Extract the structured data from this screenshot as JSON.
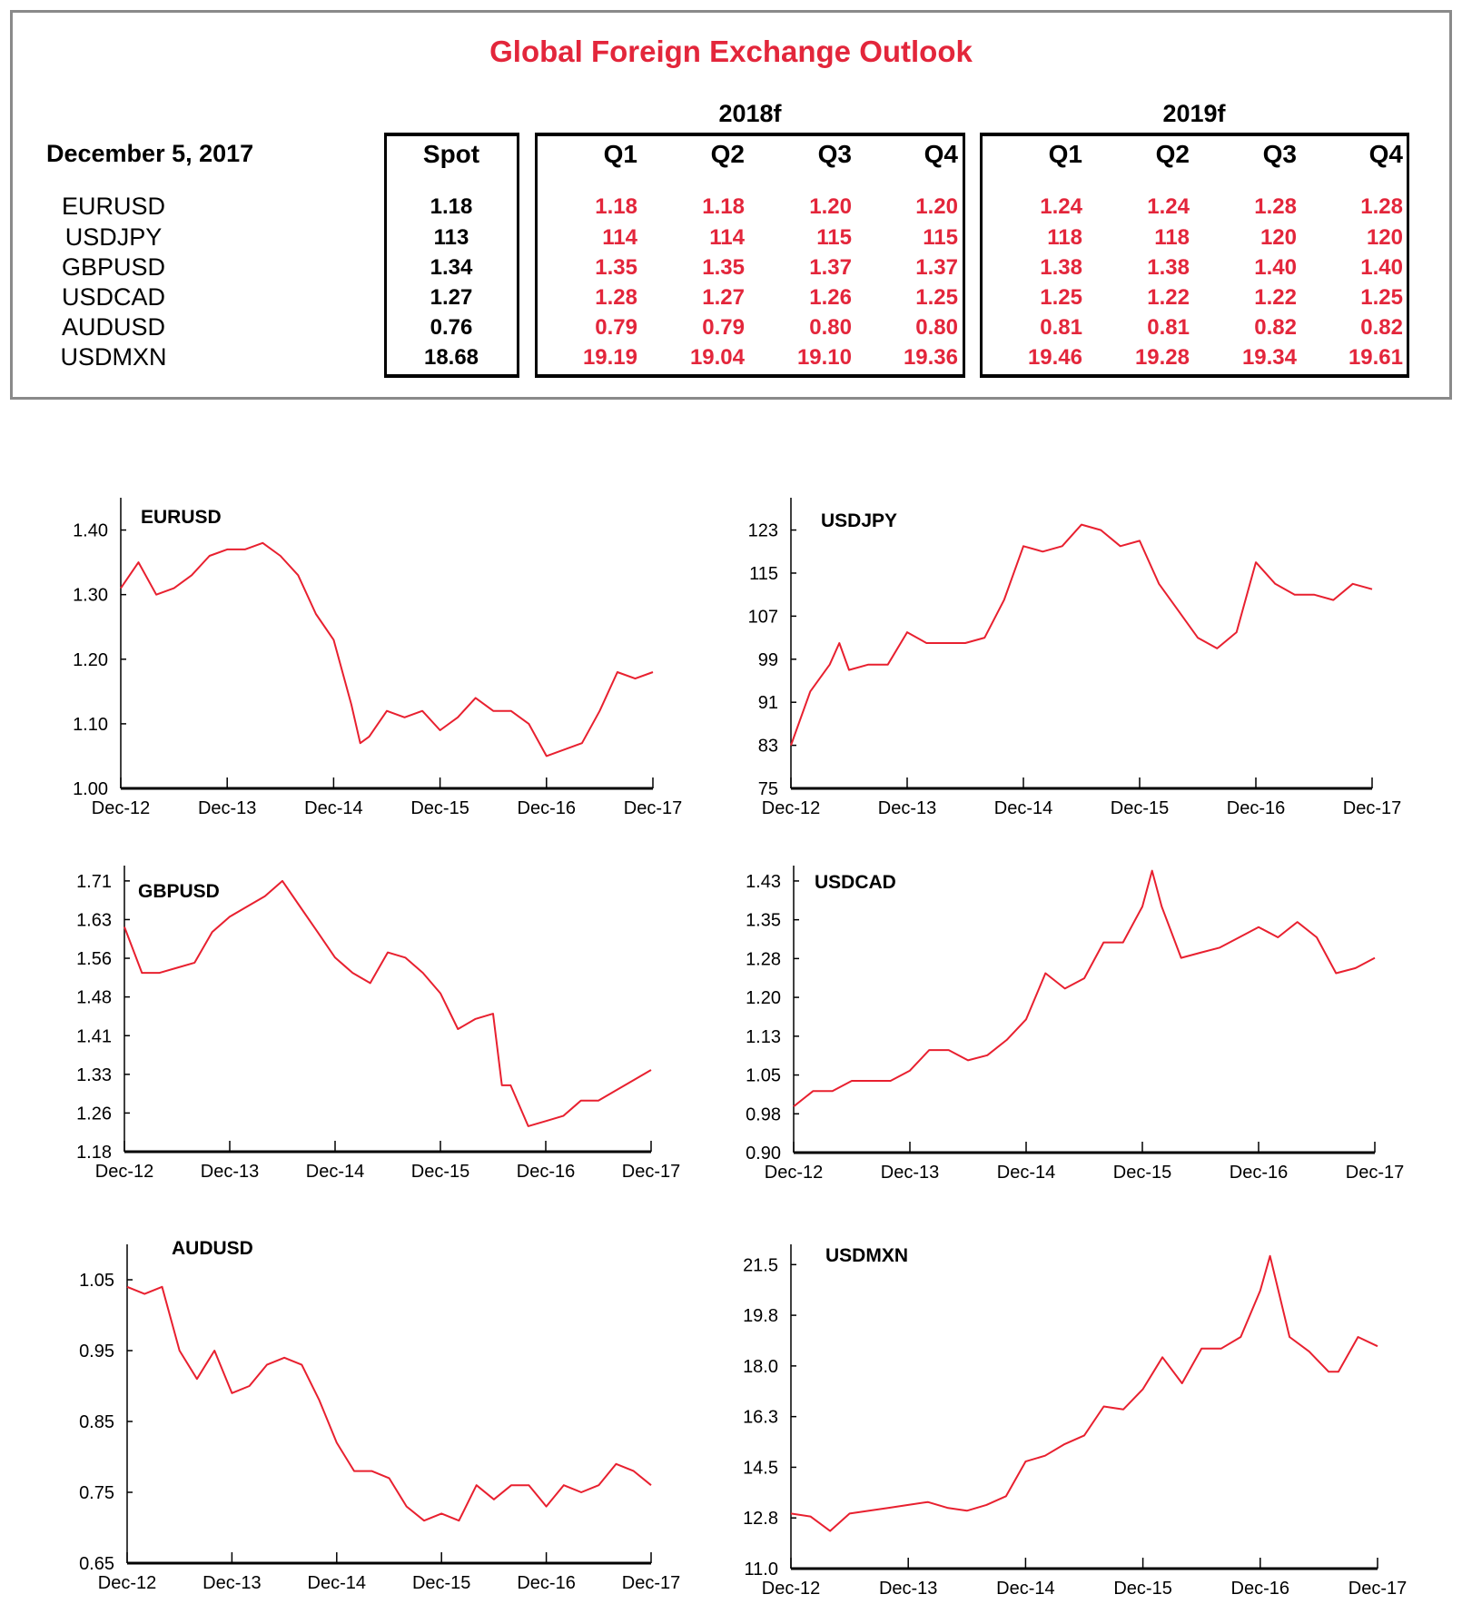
{
  "title": "Global Foreign Exchange Outlook",
  "date": "December 5, 2017",
  "table": {
    "spot_header": "Spot",
    "year_groups": [
      {
        "label": "2018f",
        "quarters": [
          "Q1",
          "Q2",
          "Q3",
          "Q4"
        ]
      },
      {
        "label": "2019f",
        "quarters": [
          "Q1",
          "Q2",
          "Q3",
          "Q4"
        ]
      }
    ],
    "rows": [
      {
        "pair": "EURUSD",
        "spot": "1.18",
        "f2018": [
          "1.18",
          "1.18",
          "1.20",
          "1.20"
        ],
        "f2019": [
          "1.24",
          "1.24",
          "1.28",
          "1.28"
        ]
      },
      {
        "pair": "USDJPY",
        "spot": "113",
        "f2018": [
          "114",
          "114",
          "115",
          "115"
        ],
        "f2019": [
          "118",
          "118",
          "120",
          "120"
        ]
      },
      {
        "pair": "GBPUSD",
        "spot": "1.34",
        "f2018": [
          "1.35",
          "1.35",
          "1.37",
          "1.37"
        ],
        "f2019": [
          "1.38",
          "1.38",
          "1.40",
          "1.40"
        ]
      },
      {
        "pair": "USDCAD",
        "spot": "1.27",
        "f2018": [
          "1.28",
          "1.27",
          "1.26",
          "1.25"
        ],
        "f2019": [
          "1.25",
          "1.22",
          "1.22",
          "1.25"
        ]
      },
      {
        "pair": "AUDUSD",
        "spot": "0.76",
        "f2018": [
          "0.79",
          "0.79",
          "0.80",
          "0.80"
        ],
        "f2019": [
          "0.81",
          "0.81",
          "0.82",
          "0.82"
        ]
      },
      {
        "pair": "USDMXN",
        "spot": "18.68",
        "f2018": [
          "19.19",
          "19.04",
          "19.10",
          "19.36"
        ],
        "f2019": [
          "19.46",
          "19.28",
          "19.34",
          "19.61"
        ]
      }
    ]
  },
  "colors": {
    "accent": "#e3263b",
    "line": "#e8202f",
    "box_border": "#8a8a8a"
  },
  "chart_data": [
    {
      "type": "line",
      "title": "EURUSD",
      "ylim": [
        1.0,
        1.45
      ],
      "yticks": [
        "1.00",
        "1.10",
        "1.20",
        "1.30",
        "1.40"
      ],
      "ytick_values": [
        1.0,
        1.1,
        1.2,
        1.3,
        1.4
      ],
      "xticks": [
        "Dec-12",
        "Dec-13",
        "Dec-14",
        "Dec-15",
        "Dec-16",
        "Dec-17"
      ],
      "grid": false,
      "points": [
        [
          "2012-12",
          1.31
        ],
        [
          "2013-02",
          1.35
        ],
        [
          "2013-04",
          1.3
        ],
        [
          "2013-06",
          1.31
        ],
        [
          "2013-08",
          1.33
        ],
        [
          "2013-10",
          1.36
        ],
        [
          "2013-12",
          1.37
        ],
        [
          "2014-02",
          1.37
        ],
        [
          "2014-04",
          1.38
        ],
        [
          "2014-06",
          1.36
        ],
        [
          "2014-08",
          1.33
        ],
        [
          "2014-10",
          1.27
        ],
        [
          "2014-12",
          1.23
        ],
        [
          "2015-02",
          1.13
        ],
        [
          "2015-03",
          1.07
        ],
        [
          "2015-04",
          1.08
        ],
        [
          "2015-06",
          1.12
        ],
        [
          "2015-08",
          1.11
        ],
        [
          "2015-10",
          1.12
        ],
        [
          "2015-12",
          1.09
        ],
        [
          "2016-02",
          1.11
        ],
        [
          "2016-04",
          1.14
        ],
        [
          "2016-06",
          1.12
        ],
        [
          "2016-08",
          1.12
        ],
        [
          "2016-10",
          1.1
        ],
        [
          "2016-12",
          1.05
        ],
        [
          "2017-02",
          1.06
        ],
        [
          "2017-04",
          1.07
        ],
        [
          "2017-06",
          1.12
        ],
        [
          "2017-08",
          1.18
        ],
        [
          "2017-10",
          1.17
        ],
        [
          "2017-12",
          1.18
        ]
      ]
    },
    {
      "type": "line",
      "title": "USDJPY",
      "ylim": [
        75,
        129
      ],
      "yticks": [
        "75",
        "83",
        "91",
        "99",
        "107",
        "115",
        "123"
      ],
      "ytick_values": [
        75,
        83,
        91,
        99,
        107,
        115,
        123
      ],
      "xticks": [
        "Dec-12",
        "Dec-13",
        "Dec-14",
        "Dec-15",
        "Dec-16",
        "Dec-17"
      ],
      "grid": false,
      "points": [
        [
          "2012-12",
          83
        ],
        [
          "2013-02",
          93
        ],
        [
          "2013-04",
          98
        ],
        [
          "2013-05",
          102
        ],
        [
          "2013-06",
          97
        ],
        [
          "2013-08",
          98
        ],
        [
          "2013-10",
          98
        ],
        [
          "2013-12",
          104
        ],
        [
          "2014-02",
          102
        ],
        [
          "2014-04",
          102
        ],
        [
          "2014-06",
          102
        ],
        [
          "2014-08",
          103
        ],
        [
          "2014-10",
          110
        ],
        [
          "2014-12",
          120
        ],
        [
          "2015-02",
          119
        ],
        [
          "2015-04",
          120
        ],
        [
          "2015-06",
          124
        ],
        [
          "2015-08",
          123
        ],
        [
          "2015-10",
          120
        ],
        [
          "2015-12",
          121
        ],
        [
          "2016-02",
          113
        ],
        [
          "2016-04",
          108
        ],
        [
          "2016-06",
          103
        ],
        [
          "2016-08",
          101
        ],
        [
          "2016-10",
          104
        ],
        [
          "2016-12",
          117
        ],
        [
          "2017-02",
          113
        ],
        [
          "2017-04",
          111
        ],
        [
          "2017-06",
          111
        ],
        [
          "2017-08",
          110
        ],
        [
          "2017-10",
          113
        ],
        [
          "2017-12",
          112
        ]
      ]
    },
    {
      "type": "line",
      "title": "GBPUSD",
      "ylim": [
        1.18,
        1.74
      ],
      "yticks": [
        "1.18",
        "1.26",
        "1.33",
        "1.41",
        "1.48",
        "1.56",
        "1.63",
        "1.71"
      ],
      "ytick_values": [
        1.18,
        1.2557,
        1.3314,
        1.4071,
        1.4829,
        1.5586,
        1.6343,
        1.71
      ],
      "xticks": [
        "Dec-12",
        "Dec-13",
        "Dec-14",
        "Dec-15",
        "Dec-16",
        "Dec-17"
      ],
      "grid": false,
      "points": [
        [
          "2012-12",
          1.62
        ],
        [
          "2013-02",
          1.53
        ],
        [
          "2013-04",
          1.53
        ],
        [
          "2013-06",
          1.54
        ],
        [
          "2013-08",
          1.55
        ],
        [
          "2013-10",
          1.61
        ],
        [
          "2013-12",
          1.64
        ],
        [
          "2014-02",
          1.66
        ],
        [
          "2014-04",
          1.68
        ],
        [
          "2014-06",
          1.71
        ],
        [
          "2014-08",
          1.66
        ],
        [
          "2014-10",
          1.61
        ],
        [
          "2014-12",
          1.56
        ],
        [
          "2015-02",
          1.53
        ],
        [
          "2015-04",
          1.51
        ],
        [
          "2015-06",
          1.57
        ],
        [
          "2015-08",
          1.56
        ],
        [
          "2015-10",
          1.53
        ],
        [
          "2015-12",
          1.49
        ],
        [
          "2016-02",
          1.42
        ],
        [
          "2016-04",
          1.44
        ],
        [
          "2016-06",
          1.45
        ],
        [
          "2016-07",
          1.31
        ],
        [
          "2016-08",
          1.31
        ],
        [
          "2016-10",
          1.23
        ],
        [
          "2016-12",
          1.24
        ],
        [
          "2017-02",
          1.25
        ],
        [
          "2017-04",
          1.28
        ],
        [
          "2017-06",
          1.28
        ],
        [
          "2017-08",
          1.3
        ],
        [
          "2017-10",
          1.32
        ],
        [
          "2017-12",
          1.34
        ]
      ]
    },
    {
      "type": "line",
      "title": "USDCAD",
      "ylim": [
        0.9,
        1.46
      ],
      "yticks": [
        "0.90",
        "0.98",
        "1.05",
        "1.13",
        "1.20",
        "1.28",
        "1.35",
        "1.43"
      ],
      "ytick_values": [
        0.9,
        0.9757,
        1.0514,
        1.1271,
        1.2029,
        1.2786,
        1.3543,
        1.43
      ],
      "xticks": [
        "Dec-12",
        "Dec-13",
        "Dec-14",
        "Dec-15",
        "Dec-16",
        "Dec-17"
      ],
      "grid": false,
      "points": [
        [
          "2012-12",
          0.99
        ],
        [
          "2013-02",
          1.02
        ],
        [
          "2013-04",
          1.02
        ],
        [
          "2013-06",
          1.04
        ],
        [
          "2013-08",
          1.04
        ],
        [
          "2013-10",
          1.04
        ],
        [
          "2013-12",
          1.06
        ],
        [
          "2014-02",
          1.1
        ],
        [
          "2014-04",
          1.1
        ],
        [
          "2014-06",
          1.08
        ],
        [
          "2014-08",
          1.09
        ],
        [
          "2014-10",
          1.12
        ],
        [
          "2014-12",
          1.16
        ],
        [
          "2015-02",
          1.25
        ],
        [
          "2015-04",
          1.22
        ],
        [
          "2015-06",
          1.24
        ],
        [
          "2015-08",
          1.31
        ],
        [
          "2015-10",
          1.31
        ],
        [
          "2015-12",
          1.38
        ],
        [
          "2016-01",
          1.45
        ],
        [
          "2016-02",
          1.38
        ],
        [
          "2016-04",
          1.28
        ],
        [
          "2016-06",
          1.29
        ],
        [
          "2016-08",
          1.3
        ],
        [
          "2016-10",
          1.32
        ],
        [
          "2016-12",
          1.34
        ],
        [
          "2017-02",
          1.32
        ],
        [
          "2017-04",
          1.35
        ],
        [
          "2017-06",
          1.32
        ],
        [
          "2017-08",
          1.25
        ],
        [
          "2017-10",
          1.26
        ],
        [
          "2017-12",
          1.28
        ]
      ]
    },
    {
      "type": "line",
      "title": "AUDUSD",
      "ylim": [
        0.65,
        1.1
      ],
      "yticks": [
        "0.65",
        "0.75",
        "0.85",
        "0.95",
        "1.05"
      ],
      "ytick_values": [
        0.65,
        0.75,
        0.85,
        0.95,
        1.05
      ],
      "xticks": [
        "Dec-12",
        "Dec-13",
        "Dec-14",
        "Dec-15",
        "Dec-16",
        "Dec-17"
      ],
      "grid": false,
      "points": [
        [
          "2012-12",
          1.04
        ],
        [
          "2013-02",
          1.03
        ],
        [
          "2013-04",
          1.04
        ],
        [
          "2013-06",
          0.95
        ],
        [
          "2013-08",
          0.91
        ],
        [
          "2013-10",
          0.95
        ],
        [
          "2013-12",
          0.89
        ],
        [
          "2014-02",
          0.9
        ],
        [
          "2014-04",
          0.93
        ],
        [
          "2014-06",
          0.94
        ],
        [
          "2014-08",
          0.93
        ],
        [
          "2014-10",
          0.88
        ],
        [
          "2014-12",
          0.82
        ],
        [
          "2015-02",
          0.78
        ],
        [
          "2015-04",
          0.78
        ],
        [
          "2015-06",
          0.77
        ],
        [
          "2015-08",
          0.73
        ],
        [
          "2015-10",
          0.71
        ],
        [
          "2015-12",
          0.72
        ],
        [
          "2016-02",
          0.71
        ],
        [
          "2016-04",
          0.76
        ],
        [
          "2016-06",
          0.74
        ],
        [
          "2016-08",
          0.76
        ],
        [
          "2016-10",
          0.76
        ],
        [
          "2016-12",
          0.73
        ],
        [
          "2017-02",
          0.76
        ],
        [
          "2017-04",
          0.75
        ],
        [
          "2017-06",
          0.76
        ],
        [
          "2017-08",
          0.79
        ],
        [
          "2017-10",
          0.78
        ],
        [
          "2017-12",
          0.76
        ]
      ]
    },
    {
      "type": "line",
      "title": "USDMXN",
      "ylim": [
        11.0,
        22.2
      ],
      "yticks": [
        "11.0",
        "12.8",
        "14.5",
        "16.3",
        "18.0",
        "19.8",
        "21.5"
      ],
      "ytick_values": [
        11.0,
        12.75,
        14.5,
        16.25,
        18.0,
        19.75,
        21.5
      ],
      "xticks": [
        "Dec-12",
        "Dec-13",
        "Dec-14",
        "Dec-15",
        "Dec-16",
        "Dec-17"
      ],
      "grid": false,
      "points": [
        [
          "2012-12",
          12.9
        ],
        [
          "2013-02",
          12.8
        ],
        [
          "2013-04",
          12.3
        ],
        [
          "2013-06",
          12.9
        ],
        [
          "2013-08",
          13.0
        ],
        [
          "2013-10",
          13.1
        ],
        [
          "2013-12",
          13.2
        ],
        [
          "2014-02",
          13.3
        ],
        [
          "2014-04",
          13.1
        ],
        [
          "2014-06",
          13.0
        ],
        [
          "2014-08",
          13.2
        ],
        [
          "2014-10",
          13.5
        ],
        [
          "2014-12",
          14.7
        ],
        [
          "2015-02",
          14.9
        ],
        [
          "2015-04",
          15.3
        ],
        [
          "2015-06",
          15.6
        ],
        [
          "2015-08",
          16.6
        ],
        [
          "2015-10",
          16.5
        ],
        [
          "2015-12",
          17.2
        ],
        [
          "2016-02",
          18.3
        ],
        [
          "2016-04",
          17.4
        ],
        [
          "2016-06",
          18.6
        ],
        [
          "2016-08",
          18.6
        ],
        [
          "2016-10",
          19.0
        ],
        [
          "2016-12",
          20.6
        ],
        [
          "2017-01",
          21.8
        ],
        [
          "2017-03",
          19.0
        ],
        [
          "2017-05",
          18.5
        ],
        [
          "2017-07",
          17.8
        ],
        [
          "2017-08",
          17.8
        ],
        [
          "2017-10",
          19.0
        ],
        [
          "2017-12",
          18.68
        ]
      ]
    }
  ]
}
